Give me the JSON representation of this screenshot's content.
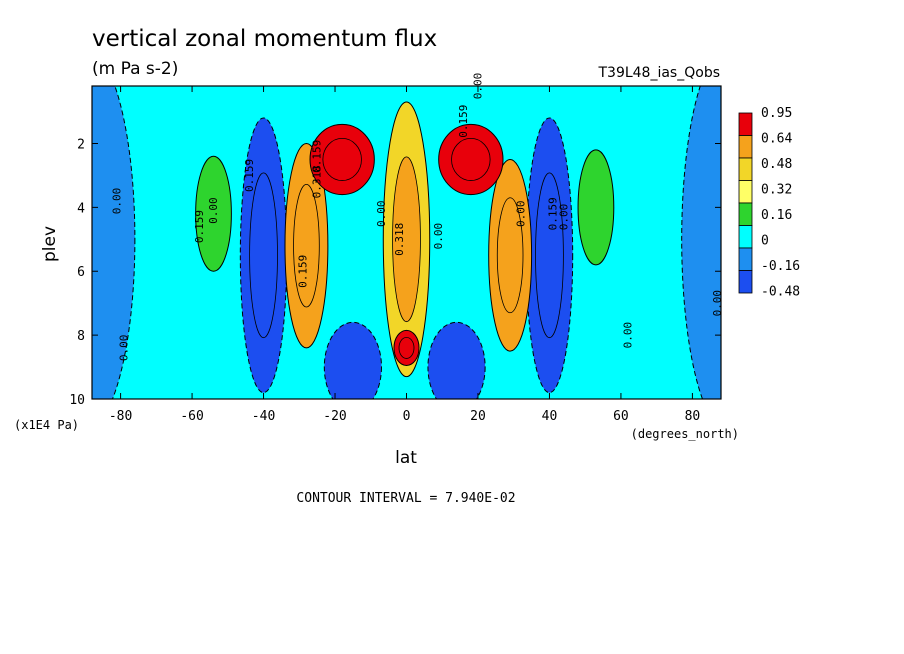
{
  "chart_data": {
    "type": "heatmap",
    "title": "vertical zonal momentum flux",
    "subtitle": "(m Pa s-2)",
    "run_label": "T39L48_ias_Qobs",
    "xlabel": "lat",
    "x_units": "(degrees_north)",
    "ylabel": "plev",
    "y_units": "(x1E4 Pa)",
    "xlim": [
      -88,
      88
    ],
    "ylim": [
      10,
      0.2
    ],
    "x_ticks": [
      -80,
      -60,
      -40,
      -20,
      0,
      20,
      40,
      60,
      80
    ],
    "y_ticks": [
      2,
      4,
      6,
      8,
      10
    ],
    "footer": "CONTOUR INTERVAL = 7.940E-02",
    "colorbar": {
      "labels": [
        "0.95",
        "0.64",
        "0.48",
        "0.32",
        "0.16",
        "0",
        "-0.16",
        "-0.48"
      ],
      "colors": [
        "#e8000b",
        "#f5a21c",
        "#f2d628",
        "#ffff66",
        "#2ed42e",
        "#00ffff",
        "#1e8ff0",
        "#1c4ef0"
      ]
    },
    "levels": [
      -0.48,
      -0.16,
      0,
      0.16,
      0.32,
      0.48,
      0.64,
      0.95
    ],
    "contour_labels": [
      "0.00",
      "0.159",
      "0.159",
      "0.00",
      "0.00",
      "0.159",
      "0.00",
      "0.159",
      "0.318",
      "0.318",
      "0.00",
      "0.00",
      "0.159",
      "0.00",
      "0.159",
      "0.00",
      "0.00",
      "0.00"
    ],
    "features": [
      {
        "lat": 0,
        "plev": 8.4,
        "value": 0.95
      },
      {
        "lat": 0,
        "plev": 5.0,
        "value": 0.4
      },
      {
        "lat": -18,
        "plev": 2.5,
        "value": 0.7
      },
      {
        "lat": 18,
        "plev": 2.5,
        "value": 0.7
      },
      {
        "lat": -28,
        "plev": 5.2,
        "value": 0.5
      },
      {
        "lat": 29,
        "plev": 5.5,
        "value": 0.5
      },
      {
        "lat": -54,
        "plev": 4.2,
        "value": 0.2
      },
      {
        "lat": 53,
        "plev": 4.0,
        "value": 0.2
      },
      {
        "lat": -40,
        "plev": 5.5,
        "value": -0.3
      },
      {
        "lat": 40,
        "plev": 5.5,
        "value": -0.3
      },
      {
        "lat": -15,
        "plev": 9.0,
        "value": -0.25
      },
      {
        "lat": 14,
        "plev": 9.0,
        "value": -0.25
      },
      {
        "lat": -90,
        "plev": 5.0,
        "value": -0.1
      },
      {
        "lat": 90,
        "plev": 5.0,
        "value": -0.1
      }
    ]
  }
}
